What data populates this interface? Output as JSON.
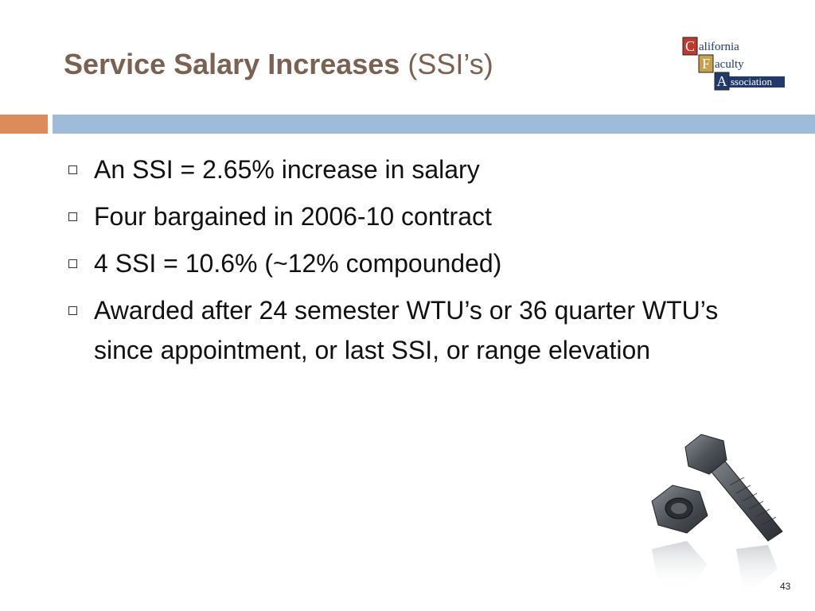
{
  "slide": {
    "title_bold": "Service Salary Increases",
    "title_normal": "(SSI’s)",
    "bullets": [
      "An SSI = 2.65% increase in salary",
      "Four bargained in 2006-10 contract",
      "4 SSI = 10.6% (~12% compounded)",
      "Awarded after 24 semester WTU’s or 36 quarter WTU’s since appointment, or last SSI, or range elevation"
    ],
    "logo": {
      "line1_initial": "C",
      "line1_rest": "alifornia",
      "line2_initial": "F",
      "line2_rest": "aculty",
      "line3_initial": "A",
      "line3_rest": "ssociation"
    },
    "page_number": "43",
    "image": "bolt-and-nut-illustration",
    "colors": {
      "title": "#7a6150",
      "accent_orange": "#dc8c5a",
      "accent_blue": "#9ebcda",
      "logo_red": "#c0392b",
      "logo_gold": "#c8a14a",
      "logo_navy": "#1f3a6b"
    }
  }
}
